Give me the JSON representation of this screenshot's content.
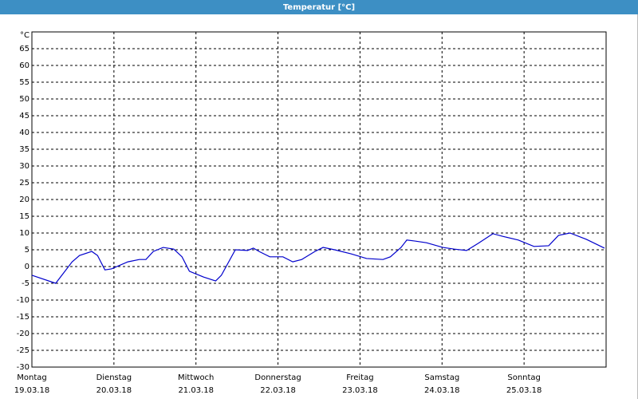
{
  "chart_data": {
    "type": "line",
    "title": "Temperatur [°C]",
    "y_unit": "°C",
    "x": [
      0,
      0.29,
      0.49,
      0.58,
      0.73,
      0.8,
      0.89,
      0.97,
      1.17,
      1.31,
      1.39,
      1.48,
      1.6,
      1.73,
      1.83,
      1.92,
      2.09,
      2.24,
      2.31,
      2.48,
      2.63,
      2.7,
      2.77,
      2.9,
      3.06,
      3.18,
      3.29,
      3.45,
      3.55,
      3.69,
      3.89,
      4.08,
      4.28,
      4.37,
      4.5,
      4.57,
      4.67,
      4.81,
      5.01,
      5.15,
      5.3,
      5.44,
      5.62,
      5.74,
      5.93,
      6.12,
      6.3,
      6.42,
      6.56,
      6.76,
      6.98
    ],
    "values": [
      -2.6,
      -5,
      1.4,
      3.3,
      4.5,
      3.3,
      -1,
      -0.7,
      1.4,
      2.1,
      2.1,
      4.5,
      5.7,
      5.2,
      2.9,
      -1.4,
      -3.1,
      -4.3,
      -2.6,
      5,
      4.8,
      5.5,
      4.5,
      2.9,
      2.9,
      1.4,
      2.1,
      4.5,
      5.7,
      5,
      3.8,
      2.4,
      2.1,
      2.9,
      5.7,
      7.9,
      7.6,
      7.1,
      5.7,
      5.2,
      4.8,
      6.9,
      9.8,
      9,
      7.9,
      6,
      6.2,
      9.3,
      10,
      8.1,
      5.5
    ],
    "color": "#0000cc",
    "xlim": [
      0,
      7
    ],
    "xticks": [
      {
        "value": 0,
        "label": "Montag"
      },
      {
        "value": 1,
        "label": "Dienstag"
      },
      {
        "value": 2,
        "label": "Mittwoch"
      },
      {
        "value": 3,
        "label": "Donnerstag"
      },
      {
        "value": 4,
        "label": "Freitag"
      },
      {
        "value": 5,
        "label": "Samstag"
      },
      {
        "value": 6,
        "label": "Sonntag"
      }
    ],
    "xtick_dates": [
      "19.03.18",
      "20.03.18",
      "21.03.18",
      "22.03.18",
      "23.03.18",
      "24.03.18",
      "25.03.18"
    ],
    "ylim": [
      -30,
      70
    ],
    "yticks": [
      -30,
      -25,
      -20,
      -15,
      -10,
      -5,
      0,
      5,
      10,
      15,
      20,
      25,
      30,
      35,
      40,
      45,
      50,
      55,
      60,
      65
    ],
    "grid": true
  }
}
